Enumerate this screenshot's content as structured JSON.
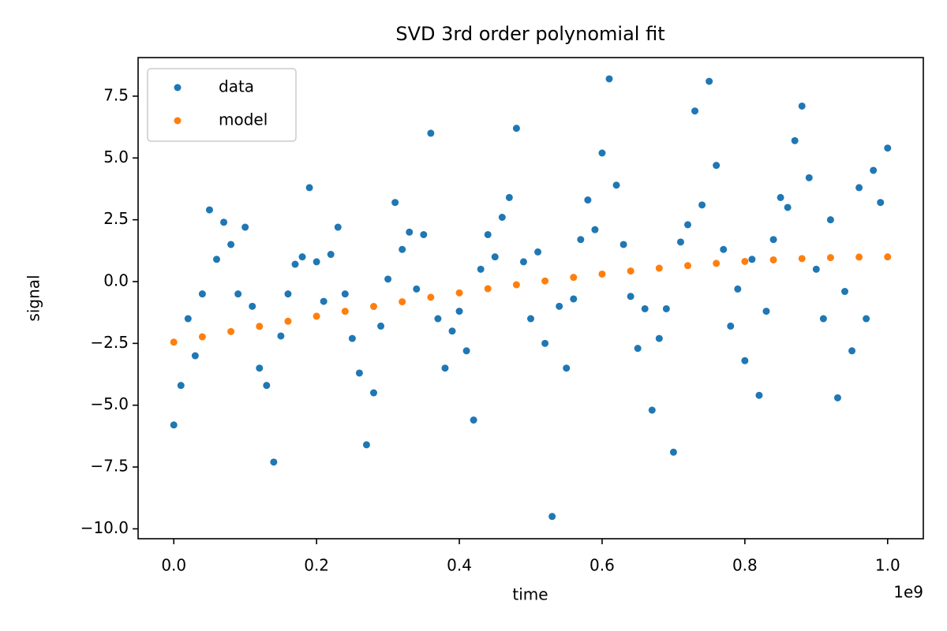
{
  "chart_data": {
    "type": "scatter",
    "title": "SVD 3rd order polynomial fit",
    "xlabel": "time",
    "ylabel": "signal",
    "x_offset_label": "1e9",
    "xlim": [
      -50000000,
      1050000000
    ],
    "ylim": [
      -10.4,
      9.06
    ],
    "xticks": [
      {
        "value": 0,
        "label": "0.0"
      },
      {
        "value": 200000000,
        "label": "0.2"
      },
      {
        "value": 400000000,
        "label": "0.4"
      },
      {
        "value": 600000000,
        "label": "0.6"
      },
      {
        "value": 800000000,
        "label": "0.8"
      },
      {
        "value": 1000000000,
        "label": "1.0"
      }
    ],
    "yticks": [
      {
        "value": -10,
        "label": "−10.0"
      },
      {
        "value": -7.5,
        "label": "−7.5"
      },
      {
        "value": -5,
        "label": "−5.0"
      },
      {
        "value": -2.5,
        "label": "−2.5"
      },
      {
        "value": 0,
        "label": "0.0"
      },
      2.5,
      {
        "value": 5,
        "label": "5.0"
      },
      7.5
    ],
    "legend": "upper left",
    "series": [
      {
        "name": "data",
        "color": "#1f77b4",
        "x": [
          0,
          10000000,
          20000000,
          30000000,
          40000000,
          50000000,
          60000000,
          70000000,
          80000000,
          90000000,
          100000000,
          110000000,
          120000000,
          130000000,
          140000000,
          150000000,
          160000000,
          170000000,
          180000000,
          190000000,
          200000000,
          210000000,
          220000000,
          230000000,
          240000000,
          250000000,
          260000000,
          270000000,
          280000000,
          290000000,
          300000000,
          310000000,
          320000000,
          330000000,
          340000000,
          350000000,
          360000000,
          370000000,
          380000000,
          390000000,
          400000000,
          410000000,
          420000000,
          430000000,
          440000000,
          450000000,
          460000000,
          470000000,
          480000000,
          490000000,
          500000000,
          510000000,
          520000000,
          530000000,
          540000000,
          550000000,
          560000000,
          570000000,
          580000000,
          590000000,
          600000000,
          610000000,
          620000000,
          630000000,
          640000000,
          650000000,
          660000000,
          670000000,
          680000000,
          690000000,
          700000000,
          710000000,
          720000000,
          730000000,
          740000000,
          750000000,
          760000000,
          770000000,
          780000000,
          790000000,
          800000000,
          810000000,
          820000000,
          830000000,
          840000000,
          850000000,
          860000000,
          870000000,
          880000000,
          890000000,
          900000000,
          910000000,
          920000000,
          930000000,
          940000000,
          950000000,
          960000000,
          970000000,
          980000000,
          990000000,
          1000000000
        ],
        "values": [
          -5.8,
          -4.2,
          -1.5,
          -3.0,
          -0.5,
          2.9,
          0.9,
          2.4,
          1.5,
          -0.5,
          2.2,
          -1.0,
          -3.5,
          -4.2,
          -7.3,
          -2.2,
          -0.5,
          0.7,
          1.0,
          3.8,
          0.8,
          -0.8,
          1.1,
          2.2,
          -0.5,
          -2.3,
          -3.7,
          -6.6,
          -4.5,
          -1.8,
          0.1,
          3.2,
          1.3,
          2.0,
          -0.3,
          1.9,
          6.0,
          -1.5,
          -3.5,
          -2.0,
          -1.2,
          -2.8,
          -5.6,
          0.5,
          1.9,
          1.0,
          2.6,
          3.4,
          6.2,
          0.8,
          -1.5,
          1.2,
          -2.5,
          -9.5,
          -1.0,
          -3.5,
          -0.7,
          1.7,
          3.3,
          2.1,
          5.2,
          8.2,
          3.9,
          1.5,
          -0.6,
          -2.7,
          -1.1,
          -5.2,
          -2.3,
          -1.1,
          -6.9,
          1.6,
          2.3,
          6.9,
          3.1,
          8.1,
          4.7,
          1.3,
          -1.8,
          -0.3,
          -3.2,
          0.9,
          -4.6,
          -1.2,
          1.7,
          3.4,
          3.0,
          5.7,
          7.1,
          4.2,
          0.5,
          -1.5,
          2.5,
          -4.7,
          -0.4,
          -2.8,
          3.8,
          -1.5,
          4.5,
          3.2,
          5.4
        ]
      },
      {
        "name": "model",
        "color": "#ff7f0e",
        "x": [
          0,
          40000000,
          80000000,
          120000000,
          160000000,
          200000000,
          240000000,
          280000000,
          320000000,
          360000000,
          400000000,
          440000000,
          480000000,
          520000000,
          560000000,
          600000000,
          640000000,
          680000000,
          720000000,
          760000000,
          800000000,
          840000000,
          880000000,
          920000000,
          960000000,
          1000000000
        ],
        "values": [
          -2.45,
          -2.235,
          -2.021,
          -1.811,
          -1.604,
          -1.4,
          -1.201,
          -1.006,
          -0.817,
          -0.634,
          -0.458,
          -0.289,
          -0.128,
          0.025,
          0.17,
          0.304,
          0.428,
          0.542,
          0.645,
          0.736,
          0.814,
          0.879,
          0.931,
          0.969,
          0.992,
          1.0
        ]
      }
    ]
  }
}
